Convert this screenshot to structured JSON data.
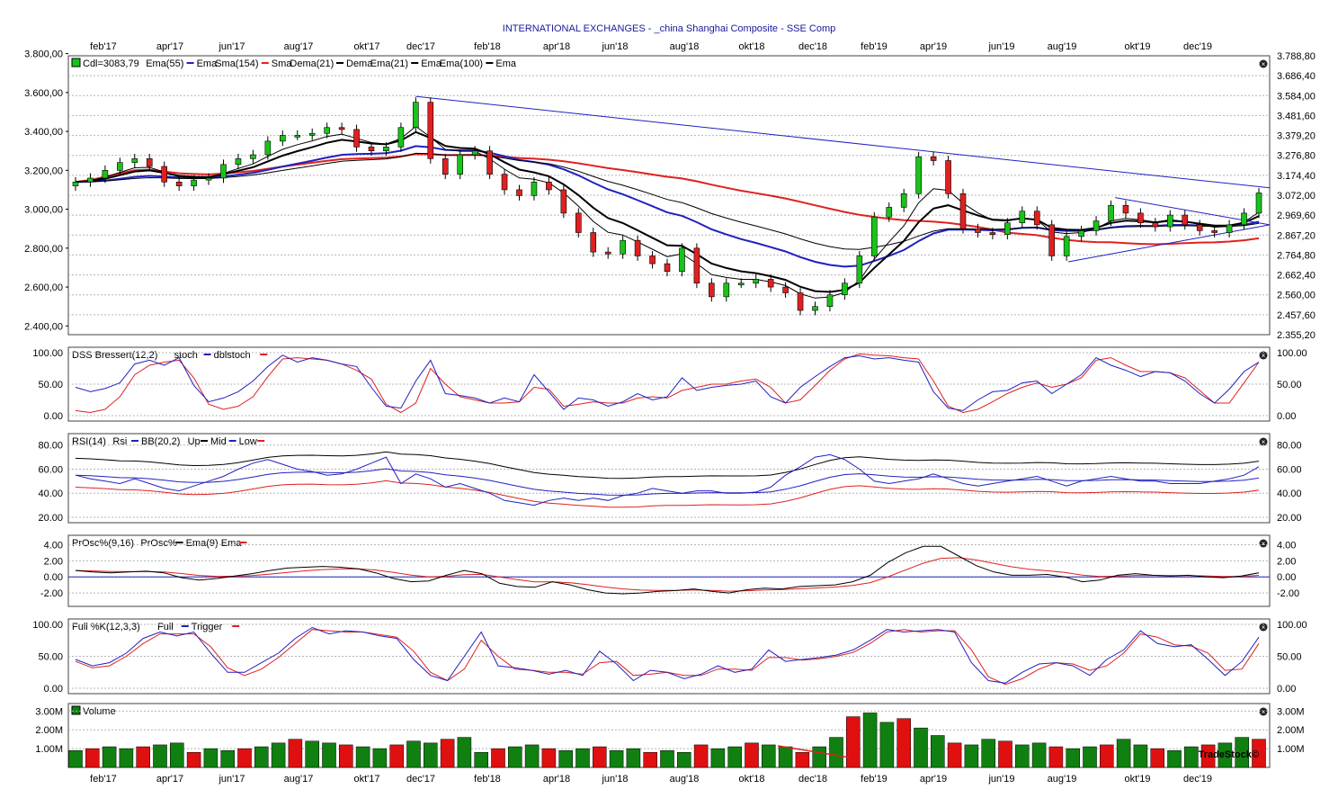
{
  "title": "INTERNATIONAL EXCHANGES - _china Shanghai Composite - SSE Comp",
  "watermark": "TradeStock©",
  "month_labels": [
    "feb'17",
    "apr'17",
    "jun'17",
    "aug'17",
    "okt'17",
    "dec'17",
    "feb'18",
    "apr'18",
    "jun'18",
    "aug'18",
    "okt'18",
    "dec'18",
    "feb'19",
    "apr'19",
    "jun'19",
    "aug'19",
    "okt'19",
    "dec'19"
  ],
  "colors": {
    "up": "#18c418",
    "down": "#e02020",
    "blue": "#2020c0",
    "red": "#e02020",
    "black": "#000000",
    "vol_up": "#108010",
    "vol_down": "#e01010",
    "grid": "#b4b4b4"
  },
  "close_icon": "close-x-icon",
  "panels": {
    "price": {
      "legend": [
        {
          "swatch": "#18c418",
          "text": "Cdl=3083,79"
        },
        {
          "text": "Ema(55)",
          "line": "#2020c0"
        },
        {
          "text": "Ema"
        },
        {
          "text": "Sma(154)",
          "line": "#e02020"
        },
        {
          "text": "Sma"
        },
        {
          "text": "Dema(21)",
          "line": "#000000"
        },
        {
          "text": "Dema"
        },
        {
          "text": "Ema(21)",
          "line": "#000000"
        },
        {
          "text": "Ema"
        },
        {
          "text": "Ema(100)",
          "line": "#000000"
        },
        {
          "text": "Ema"
        }
      ],
      "left_ticks": [
        "3.800,00",
        "3.600,00",
        "3.400,00",
        "3.200,00",
        "3.000,00",
        "2.800,00",
        "2.600,00",
        "2.400,00"
      ],
      "right_ticks": [
        "3.788,80",
        "3.686,40",
        "3.584,00",
        "3.481,60",
        "3.379,20",
        "3.276,80",
        "3.174,40",
        "3.072,00",
        "2.969,60",
        "2.867,20",
        "2.764,80",
        "2.662,40",
        "2.560,00",
        "2.457,60",
        "2.355,20"
      ]
    },
    "dss": {
      "legend": [
        {
          "text": "DSS Bressert(12,2)"
        },
        {
          "text": "stoch",
          "line": "#2020c0"
        },
        {
          "text": "dblstoch",
          "line": "#e02020"
        }
      ],
      "ticks": [
        "100.00",
        "50.00",
        "0.00"
      ]
    },
    "rsi": {
      "legend": [
        {
          "text": "RSI(14)"
        },
        {
          "text": "Rsi",
          "line": "#2020c0"
        },
        {
          "text": "BB(20,2)"
        },
        {
          "text": "Up",
          "line": "#000000"
        },
        {
          "text": "Mid",
          "line": "#2020c0"
        },
        {
          "text": "Low",
          "line": "#e02020"
        }
      ],
      "ticks": [
        "80.00",
        "60.00",
        "40.00",
        "20.00"
      ]
    },
    "prosc": {
      "legend": [
        {
          "text": "PrOsc%(9,16)"
        },
        {
          "text": "PrOsc%",
          "line": "#000000"
        },
        {
          "text": "Ema(9)"
        },
        {
          "text": "Ema",
          "line": "#e02020"
        }
      ],
      "ticks": [
        "4.00",
        "2.00",
        "0.00",
        "-2.00"
      ]
    },
    "full": {
      "legend": [
        {
          "text": "Full %K(12,3,3)"
        },
        {
          "text": "Full",
          "line": "#2020c0"
        },
        {
          "text": "Trigger",
          "line": "#e02020"
        }
      ],
      "ticks": [
        "100.00",
        "50.00",
        "0.00"
      ]
    },
    "volume": {
      "legend": [
        {
          "swatch": "#108010",
          "text": "Volume"
        }
      ],
      "ticks": [
        "3.00M",
        "2.00M",
        "1.00M"
      ]
    }
  },
  "chart_data": {
    "type": "line",
    "x_label_months": [
      "feb'17",
      "apr'17",
      "jun'17",
      "aug'17",
      "okt'17",
      "dec'17",
      "feb'18",
      "apr'18",
      "jun'18",
      "aug'18",
      "okt'18",
      "dec'18",
      "feb'19",
      "apr'19",
      "jun'19",
      "aug'19",
      "okt'19",
      "dec'19"
    ],
    "price_close": [
      3140,
      3160,
      3200,
      3240,
      3260,
      3220,
      3140,
      3120,
      3150,
      3160,
      3230,
      3260,
      3280,
      3350,
      3380,
      3380,
      3390,
      3420,
      3410,
      3320,
      3300,
      3320,
      3420,
      3550,
      3260,
      3180,
      3280,
      3300,
      3180,
      3100,
      3070,
      3140,
      3100,
      2980,
      2880,
      2780,
      2770,
      2840,
      2760,
      2720,
      2680,
      2800,
      2620,
      2550,
      2620,
      2620,
      2640,
      2600,
      2570,
      2480,
      2500,
      2560,
      2620,
      2760,
      2960,
      3010,
      3080,
      3270,
      3250,
      3080,
      2900,
      2880,
      2870,
      2930,
      2990,
      2920,
      2760,
      2860,
      2890,
      2940,
      3020,
      2980,
      2930,
      2910,
      2970,
      2920,
      2890,
      2880,
      2920,
      2980,
      3083.79
    ],
    "price_axis_left_range": [
      2355.2,
      3788.8
    ],
    "series": [
      {
        "name": "stoch",
        "values": [
          45,
          38,
          43,
          52,
          82,
          88,
          80,
          92,
          48,
          22,
          28,
          38,
          55,
          78,
          96,
          85,
          92,
          88,
          82,
          78,
          45,
          15,
          12,
          55,
          88,
          35,
          32,
          28,
          20,
          28,
          22,
          65,
          38,
          10,
          28,
          25,
          15,
          22,
          35,
          25,
          30,
          60,
          40,
          45,
          48,
          50,
          55,
          30,
          20,
          45,
          62,
          78,
          92,
          95,
          90,
          92,
          88,
          85,
          38,
          12,
          8,
          25,
          38,
          40,
          52,
          55,
          35,
          50,
          65,
          92,
          80,
          72,
          62,
          70,
          68,
          55,
          35,
          20,
          42,
          70,
          85
        ]
      },
      {
        "name": "dblstoch",
        "values": [
          8,
          5,
          10,
          30,
          65,
          80,
          85,
          88,
          60,
          18,
          10,
          15,
          30,
          62,
          90,
          92,
          90,
          88,
          82,
          72,
          58,
          18,
          5,
          20,
          75,
          50,
          30,
          25,
          20,
          20,
          22,
          45,
          42,
          15,
          18,
          22,
          20,
          20,
          28,
          30,
          28,
          40,
          45,
          50,
          50,
          55,
          58,
          45,
          20,
          25,
          48,
          72,
          90,
          98,
          96,
          95,
          92,
          90,
          55,
          15,
          5,
          10,
          22,
          35,
          45,
          52,
          45,
          50,
          60,
          88,
          92,
          80,
          70,
          70,
          68,
          60,
          40,
          20,
          20,
          52,
          85
        ]
      },
      {
        "name": "Rsi",
        "values": [
          55,
          52,
          50,
          48,
          52,
          48,
          44,
          42,
          46,
          50,
          54,
          60,
          65,
          68,
          64,
          60,
          58,
          55,
          56,
          60,
          65,
          70,
          48,
          56,
          52,
          45,
          48,
          44,
          40,
          34,
          32,
          30,
          34,
          36,
          34,
          36,
          34,
          38,
          40,
          44,
          42,
          40,
          42,
          42,
          40,
          40,
          41,
          45,
          55,
          62,
          70,
          72,
          68,
          60,
          50,
          48,
          50,
          52,
          56,
          52,
          48,
          46,
          48,
          50,
          52,
          54,
          50,
          46,
          50,
          52,
          54,
          52,
          50,
          50,
          48,
          48,
          48,
          50,
          52,
          55,
          62
        ]
      },
      {
        "name": "PrOsc%",
        "values": [
          0.8,
          0.6,
          0.5,
          0.6,
          0.7,
          0.5,
          -0.1,
          -0.4,
          -0.2,
          0.1,
          0.4,
          0.8,
          1.1,
          1.2,
          1.3,
          1.2,
          1.0,
          0.5,
          -0.2,
          -0.6,
          -0.5,
          0.2,
          0.8,
          0.4,
          -0.8,
          -1.2,
          -1.3,
          -0.6,
          -1.0,
          -1.6,
          -2.0,
          -2.1,
          -2.0,
          -1.8,
          -1.7,
          -1.5,
          -1.8,
          -2.0,
          -1.6,
          -1.4,
          -1.5,
          -1.2,
          -1.1,
          -1.0,
          -0.6,
          0.2,
          1.8,
          3.0,
          3.8,
          3.8,
          2.6,
          1.4,
          0.6,
          0.2,
          0.2,
          0.3,
          0.0,
          -0.6,
          -0.4,
          0.2,
          0.4,
          0.2,
          0.1,
          0.2,
          0.0,
          -0.1,
          0.1,
          0.5
        ]
      },
      {
        "name": "Full",
        "values": [
          45,
          35,
          40,
          55,
          78,
          88,
          82,
          88,
          55,
          25,
          25,
          40,
          55,
          78,
          95,
          85,
          90,
          88,
          82,
          78,
          45,
          20,
          12,
          50,
          88,
          35,
          32,
          28,
          22,
          28,
          20,
          58,
          38,
          12,
          28,
          25,
          15,
          22,
          35,
          25,
          30,
          60,
          42,
          45,
          48,
          52,
          60,
          75,
          92,
          88,
          90,
          92,
          88,
          40,
          12,
          8,
          25,
          38,
          40,
          35,
          20,
          45,
          60,
          90,
          70,
          65,
          68,
          45,
          20,
          42,
          80
        ]
      },
      {
        "name": "Trigger",
        "values": [
          42,
          32,
          35,
          50,
          70,
          85,
          85,
          85,
          65,
          32,
          20,
          30,
          48,
          70,
          92,
          90,
          88,
          88,
          84,
          80,
          58,
          25,
          12,
          30,
          75,
          50,
          30,
          28,
          25,
          25,
          22,
          40,
          42,
          20,
          22,
          25,
          20,
          20,
          30,
          30,
          28,
          48,
          48,
          44,
          46,
          50,
          56,
          70,
          88,
          92,
          88,
          90,
          90,
          60,
          18,
          6,
          15,
          30,
          40,
          38,
          28,
          35,
          55,
          85,
          80,
          68,
          66,
          55,
          28,
          30,
          70
        ]
      },
      {
        "name": "Volume",
        "values": [
          0.9,
          1.0,
          1.1,
          1.0,
          1.1,
          1.2,
          1.3,
          0.8,
          1.0,
          0.9,
          1.0,
          1.1,
          1.3,
          1.5,
          1.4,
          1.3,
          1.2,
          1.1,
          1.0,
          1.2,
          1.4,
          1.3,
          1.5,
          1.6,
          0.8,
          1.0,
          1.1,
          1.2,
          1.0,
          0.9,
          1.0,
          1.1,
          0.9,
          1.0,
          0.8,
          0.9,
          0.8,
          1.2,
          1.0,
          1.1,
          1.3,
          1.2,
          1.1,
          0.8,
          1.1,
          1.6,
          2.7,
          2.9,
          2.4,
          2.6,
          2.1,
          1.7,
          1.3,
          1.2,
          1.5,
          1.4,
          1.2,
          1.3,
          1.1,
          1.0,
          1.1,
          1.2,
          1.5,
          1.2,
          1.0,
          0.9,
          1.1,
          1.2,
          1.3,
          1.6,
          1.5
        ]
      }
    ],
    "volume_ylim": [
      0,
      3.4
    ]
  }
}
